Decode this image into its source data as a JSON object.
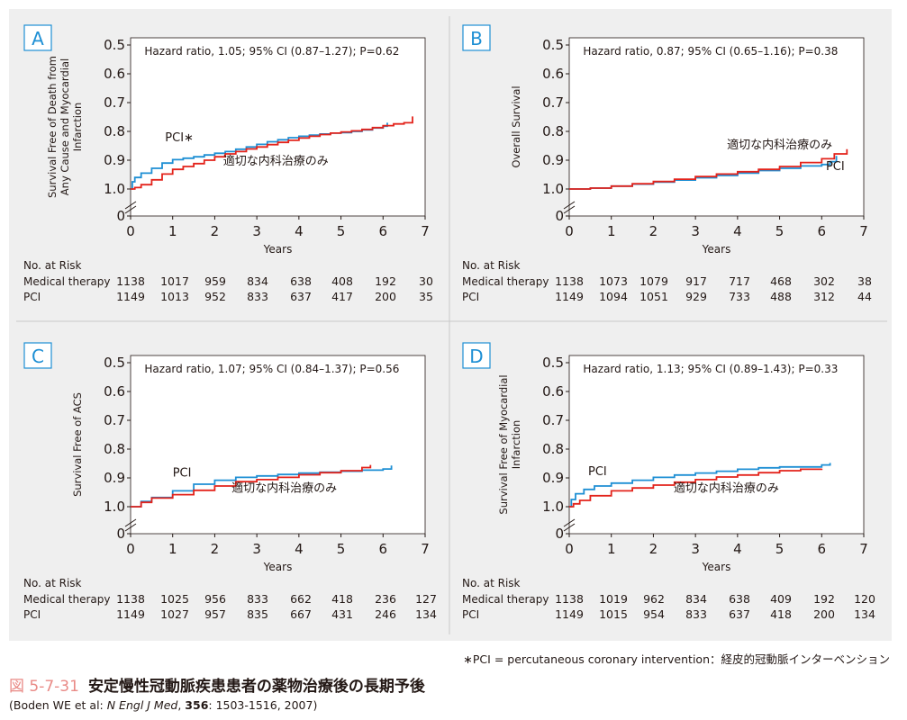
{
  "colors": {
    "medical": "#e3231b",
    "pci": "#1e8fd4",
    "letter": "#1e8fd4",
    "bg": "#efefef",
    "plot_bg": "#ffffff",
    "text": "#231815",
    "figure_number": "#e98a86"
  },
  "risk_header": "No. at Risk",
  "risk_row_labels": [
    "Medical therapy",
    "PCI"
  ],
  "xlabel": "Years",
  "x_ticks": [
    "0",
    "1",
    "2",
    "3",
    "4",
    "5",
    "6",
    "7"
  ],
  "y_ticks": [
    "1.0",
    "0.9",
    "0.8",
    "0.7",
    "0.6",
    "0.5",
    "0"
  ],
  "footnote": "∗PCI = percutaneous coronary intervention：経皮的冠動脈インターベンション",
  "figure": {
    "number": "図 5-7-31",
    "title": "安定慢性冠動脈疾患患者の薬物治療後の長期予後"
  },
  "citation": {
    "pre": "(Boden WE et al: ",
    "journal": "N Engl J Med",
    "sep": ", ",
    "volume": "356",
    "rest": ": 1503-1516, 2007)"
  },
  "chart_data": [
    {
      "panel": "A",
      "type": "line",
      "ylabel": [
        "Survival Free of Death from",
        "Any Cause and Myocardial",
        "Infarction"
      ],
      "xlabel": "Years",
      "xlim": [
        0,
        7
      ],
      "ylim": [
        0.5,
        1.0
      ],
      "y_axis_break": true,
      "annotation": "Hazard ratio, 1.05; 95% CI (0.87–1.27); P=0.62",
      "series": [
        {
          "name": "適切な内科治療のみ",
          "key": "medical",
          "x": [
            0,
            0.1,
            0.25,
            0.5,
            0.75,
            1,
            1.25,
            1.5,
            1.75,
            2,
            2.25,
            2.5,
            2.75,
            3,
            3.25,
            3.5,
            3.75,
            4,
            4.25,
            4.5,
            4.75,
            5,
            5.25,
            5.5,
            5.75,
            6,
            6.25,
            6.5,
            6.7
          ],
          "y": [
            1.0,
            0.995,
            0.985,
            0.968,
            0.948,
            0.932,
            0.922,
            0.912,
            0.9,
            0.888,
            0.878,
            0.87,
            0.861,
            0.854,
            0.846,
            0.838,
            0.831,
            0.823,
            0.817,
            0.811,
            0.806,
            0.802,
            0.798,
            0.793,
            0.787,
            0.78,
            0.774,
            0.77,
            0.748
          ]
        },
        {
          "name": "PCI∗",
          "key": "pci",
          "x": [
            0,
            0.04,
            0.1,
            0.25,
            0.5,
            0.75,
            1,
            1.25,
            1.5,
            1.75,
            2,
            2.25,
            2.5,
            2.75,
            3,
            3.25,
            3.5,
            3.75,
            4,
            4.25,
            4.5,
            4.75,
            5,
            5.25,
            5.5,
            5.75,
            6,
            6.1
          ],
          "y": [
            1.0,
            0.975,
            0.96,
            0.945,
            0.928,
            0.91,
            0.898,
            0.893,
            0.888,
            0.882,
            0.876,
            0.87,
            0.862,
            0.854,
            0.845,
            0.836,
            0.829,
            0.822,
            0.817,
            0.813,
            0.809,
            0.806,
            0.804,
            0.8,
            0.795,
            0.788,
            0.782,
            0.77
          ]
        }
      ],
      "labels": [
        {
          "series": "medical",
          "x": 2.2,
          "y": 0.915,
          "text": "適切な内科治療のみ"
        },
        {
          "series": "pci",
          "x": 0.82,
          "y": 0.835,
          "text": "PCI∗"
        }
      ],
      "risk_table": {
        "medical": [
          "1138",
          "1017",
          "959",
          "834",
          "638",
          "408",
          "192",
          "30"
        ],
        "pci": [
          "1149",
          "1013",
          "952",
          "833",
          "637",
          "417",
          "200",
          "35"
        ]
      }
    },
    {
      "panel": "B",
      "type": "line",
      "ylabel": [
        "Overall Survival"
      ],
      "xlabel": "Years",
      "xlim": [
        0,
        7
      ],
      "ylim": [
        0.5,
        1.0
      ],
      "y_axis_break": true,
      "annotation": "Hazard ratio, 0.87; 95% CI (0.65–1.16); P=0.38",
      "series": [
        {
          "name": "適切な内科治療のみ",
          "key": "medical",
          "x": [
            0,
            0.5,
            1,
            1.5,
            2,
            2.5,
            3,
            3.5,
            4,
            4.5,
            5,
            5.5,
            6,
            6.3,
            6.6
          ],
          "y": [
            1.0,
            0.997,
            0.99,
            0.982,
            0.974,
            0.966,
            0.957,
            0.948,
            0.94,
            0.932,
            0.922,
            0.908,
            0.895,
            0.878,
            0.862
          ]
        },
        {
          "name": "PCI",
          "key": "pci",
          "x": [
            0,
            0.5,
            1,
            1.5,
            2,
            2.5,
            3,
            3.5,
            4,
            4.5,
            5,
            5.5,
            6,
            6.2,
            6.35
          ],
          "y": [
            1.0,
            0.997,
            0.99,
            0.983,
            0.976,
            0.969,
            0.961,
            0.953,
            0.945,
            0.936,
            0.928,
            0.92,
            0.915,
            0.905,
            0.885
          ]
        }
      ],
      "labels": [
        {
          "series": "pci",
          "x": 6.1,
          "y": 0.935,
          "text": "PCI"
        },
        {
          "series": "medical",
          "x": 3.75,
          "y": 0.86,
          "text": "適切な内科治療のみ"
        }
      ],
      "risk_table": {
        "medical": [
          "1138",
          "1073",
          "1079",
          "917",
          "717",
          "468",
          "302",
          "38"
        ],
        "pci": [
          "1149",
          "1094",
          "1051",
          "929",
          "733",
          "488",
          "312",
          "44"
        ]
      }
    },
    {
      "panel": "C",
      "type": "line",
      "ylabel": [
        "Survival Free of ACS"
      ],
      "xlabel": "Years",
      "xlim": [
        0,
        7
      ],
      "ylim": [
        0.5,
        1.0
      ],
      "y_axis_break": true,
      "annotation": "Hazard ratio, 1.07; 95% CI (0.84–1.37); P=0.56",
      "series": [
        {
          "name": "適切な内科治療のみ",
          "key": "medical",
          "x": [
            0,
            0.25,
            0.5,
            1,
            1.5,
            2,
            2.5,
            3,
            3.5,
            4,
            4.5,
            5,
            5.5,
            5.7
          ],
          "y": [
            1.0,
            0.985,
            0.97,
            0.958,
            0.943,
            0.928,
            0.913,
            0.906,
            0.898,
            0.889,
            0.882,
            0.875,
            0.864,
            0.855
          ]
        },
        {
          "name": "PCI",
          "key": "pci",
          "x": [
            0,
            0.25,
            0.5,
            1,
            1.5,
            2,
            2.5,
            3,
            3.5,
            4,
            4.5,
            5,
            5.5,
            6,
            6.2
          ],
          "y": [
            1.0,
            0.982,
            0.968,
            0.945,
            0.922,
            0.908,
            0.898,
            0.893,
            0.888,
            0.883,
            0.88,
            0.877,
            0.873,
            0.869,
            0.857
          ]
        }
      ],
      "labels": [
        {
          "series": "medical",
          "x": 2.4,
          "y": 0.948,
          "text": "適切な内科治療のみ"
        },
        {
          "series": "pci",
          "x": 1.0,
          "y": 0.895,
          "text": "PCI"
        }
      ],
      "risk_table": {
        "medical": [
          "1138",
          "1025",
          "956",
          "833",
          "662",
          "418",
          "236",
          "127"
        ],
        "pci": [
          "1149",
          "1027",
          "957",
          "835",
          "667",
          "431",
          "246",
          "134"
        ]
      }
    },
    {
      "panel": "D",
      "type": "line",
      "ylabel": [
        "Survival Free of Myocardial",
        "Infarction"
      ],
      "xlabel": "Years",
      "xlim": [
        0,
        7
      ],
      "ylim": [
        0.5,
        1.0
      ],
      "y_axis_break": true,
      "annotation": "Hazard ratio, 1.13; 95% CI (0.89–1.43); P=0.33",
      "series": [
        {
          "name": "適切な内科治療のみ",
          "key": "medical",
          "x": [
            0,
            0.1,
            0.25,
            0.5,
            1,
            1.5,
            2,
            2.5,
            3,
            3.5,
            4,
            4.5,
            5,
            5.5,
            6
          ],
          "y": [
            1.0,
            0.99,
            0.978,
            0.962,
            0.945,
            0.935,
            0.925,
            0.915,
            0.906,
            0.897,
            0.89,
            0.882,
            0.875,
            0.87,
            0.868
          ]
        },
        {
          "name": "PCI",
          "key": "pci",
          "x": [
            0,
            0.05,
            0.15,
            0.35,
            0.6,
            1,
            1.5,
            2,
            2.5,
            3,
            3.5,
            4,
            4.5,
            5,
            5.5,
            6,
            6.2
          ],
          "y": [
            1.0,
            0.975,
            0.955,
            0.94,
            0.928,
            0.918,
            0.908,
            0.898,
            0.89,
            0.883,
            0.877,
            0.87,
            0.865,
            0.862,
            0.862,
            0.855,
            0.848
          ]
        }
      ],
      "labels": [
        {
          "series": "medical",
          "x": 2.48,
          "y": 0.948,
          "text": "適切な内科治療のみ"
        },
        {
          "series": "pci",
          "x": 0.45,
          "y": 0.89,
          "text": "PCI"
        }
      ],
      "risk_table": {
        "medical": [
          "1138",
          "1019",
          "962",
          "834",
          "638",
          "409",
          "192",
          "120"
        ],
        "pci": [
          "1149",
          "1015",
          "954",
          "833",
          "637",
          "418",
          "200",
          "134"
        ]
      }
    }
  ]
}
